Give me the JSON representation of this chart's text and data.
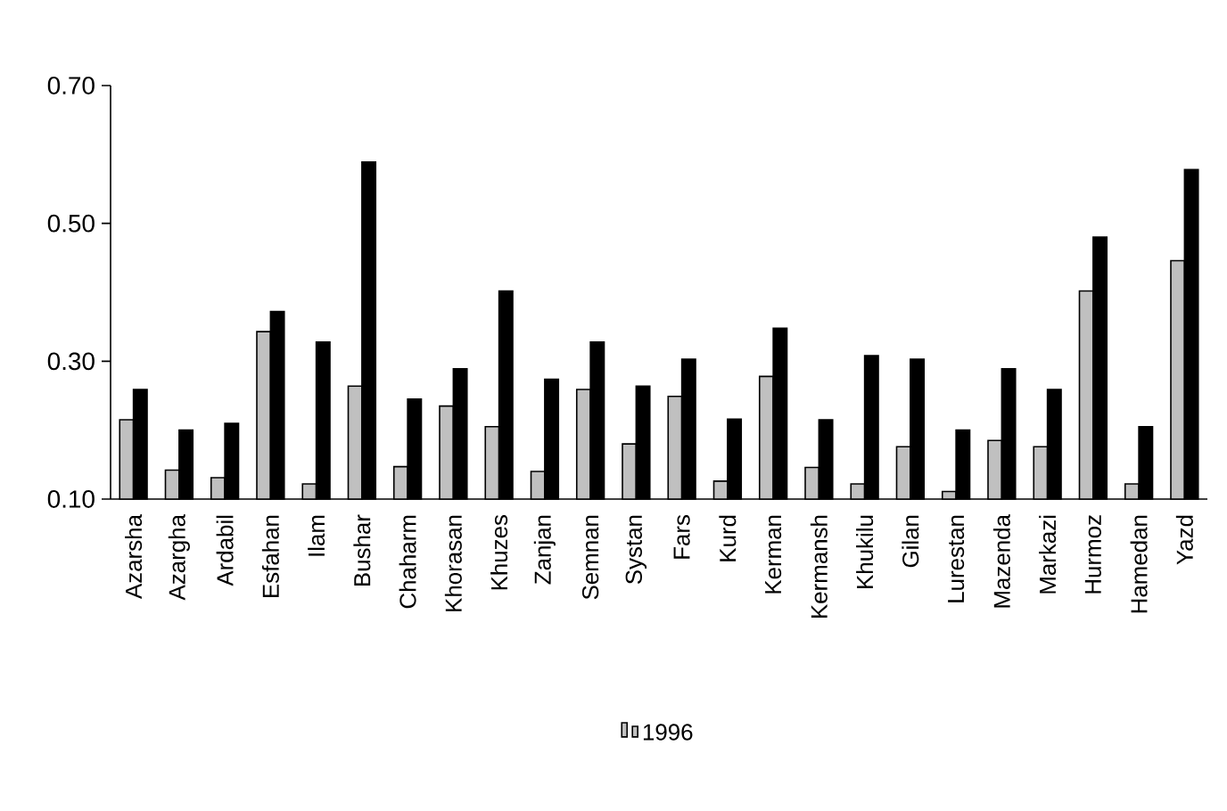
{
  "chart_data": {
    "type": "bar",
    "categories": [
      "Azarsha",
      "Azargha",
      "Ardabil",
      "Esfahan",
      "Ilam",
      "Bushar",
      "Chaharm",
      "Khorasan",
      "Khuzes",
      "Zanjan",
      "Semnan",
      "Systan",
      "Fars",
      "Kurd",
      "Kerman",
      "Kermansh",
      "Khukilu",
      "Gilan",
      "Lurestan",
      "Mazenda",
      "Markazi",
      "Hurmoz",
      "Hamedan",
      "Yazd"
    ],
    "series": [
      {
        "name": "1996",
        "color": "#c0c0c0",
        "values": [
          0.215,
          0.142,
          0.131,
          0.343,
          0.122,
          0.264,
          0.147,
          0.235,
          0.205,
          0.14,
          0.259,
          0.18,
          0.249,
          0.126,
          0.278,
          0.146,
          0.122,
          0.176,
          0.111,
          0.185,
          0.176,
          0.402,
          0.122,
          0.446
        ]
      },
      {
        "color": "#000000",
        "values": [
          0.259,
          0.2,
          0.21,
          0.372,
          0.328,
          0.589,
          0.245,
          0.289,
          0.402,
          0.274,
          0.328,
          0.264,
          0.303,
          0.216,
          0.348,
          0.215,
          0.308,
          0.303,
          0.2,
          0.289,
          0.259,
          0.48,
          0.205,
          0.578
        ]
      }
    ],
    "ylim": [
      0.1,
      0.7
    ],
    "yticks": [
      {
        "value": 0.1,
        "label": "0.10"
      },
      {
        "value": 0.3,
        "label": "0.30"
      },
      {
        "value": 0.5,
        "label": "0.50"
      },
      {
        "value": 0.7,
        "label": "0.70"
      }
    ],
    "grid": false,
    "legend": "bottom"
  }
}
